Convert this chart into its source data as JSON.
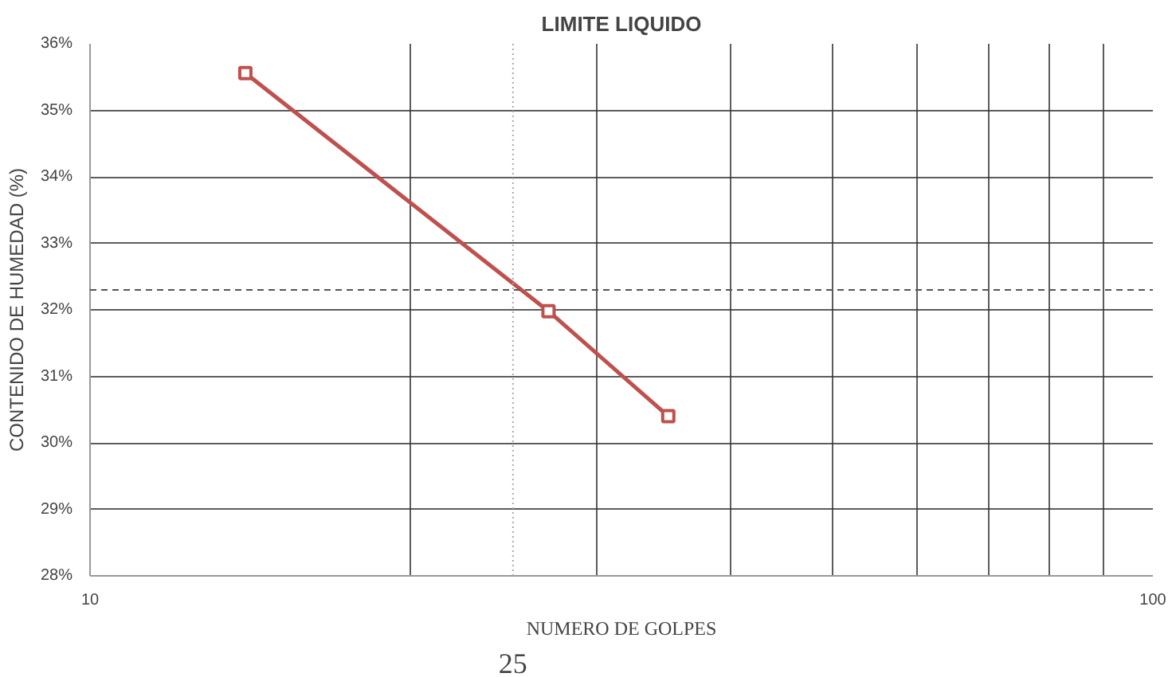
{
  "chart_data": {
    "type": "line",
    "title": "LIMITE LIQUIDO",
    "xlabel": "NUMERO DE GOLPES",
    "ylabel": "CONTENIDO DE HUMEDAD (%)",
    "log": "x",
    "x": [
      14,
      27,
      35
    ],
    "series": [
      {
        "color": "#c0504d",
        "values": [
          35.56,
          31.98,
          30.4
        ]
      }
    ],
    "xlim": [
      10,
      100
    ],
    "xticks": [
      10,
      {
        "value": 20,
        "label": null
      },
      {
        "value": 30,
        "label": null
      },
      {
        "value": 40,
        "label": null
      },
      {
        "value": 50,
        "label": null
      },
      {
        "value": 60,
        "label": null
      },
      {
        "value": 70,
        "label": null
      },
      {
        "value": 80,
        "label": null
      },
      {
        "value": 90,
        "label": null
      },
      100
    ],
    "ylim": [
      28,
      36
    ],
    "yticks": [
      {
        "value": 28,
        "label": "28%"
      },
      {
        "value": 29,
        "label": "29%"
      },
      {
        "value": 30,
        "label": "30%"
      },
      {
        "value": 31,
        "label": "31%"
      },
      {
        "value": 32,
        "label": "32%"
      },
      {
        "value": 33,
        "label": "33%"
      },
      {
        "value": 34,
        "label": "34%"
      },
      {
        "value": 35,
        "label": "35%"
      },
      {
        "value": 36,
        "label": "36%"
      }
    ],
    "ref_lines": [
      {
        "axis": "y",
        "value": 32.3,
        "line_style": "dashed",
        "color": "#555555"
      },
      {
        "axis": "x",
        "value": 25,
        "label": "25",
        "line_style": "dotted",
        "color": "#aaaaaa"
      }
    ],
    "grid": true,
    "marker": "square",
    "line_style": "solid"
  }
}
